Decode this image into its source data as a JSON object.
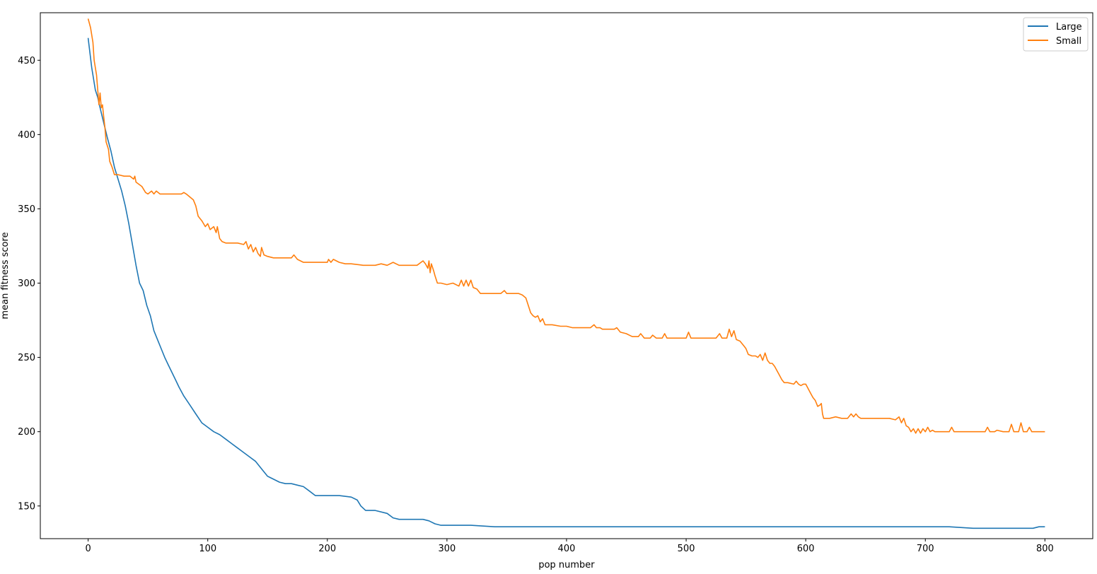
{
  "chart_data": {
    "type": "line",
    "title": "",
    "xlabel": "pop number",
    "ylabel": "mean fitness score",
    "xlim": [
      -40,
      840
    ],
    "ylim": [
      128,
      482
    ],
    "xticks": [
      0,
      100,
      200,
      300,
      400,
      500,
      600,
      700,
      800
    ],
    "yticks": [
      150,
      200,
      250,
      300,
      350,
      400,
      450
    ],
    "grid": false,
    "legend_position": "top-right",
    "series": [
      {
        "name": "Large",
        "color": "#1f77b4",
        "points": [
          [
            0,
            465
          ],
          [
            3,
            445
          ],
          [
            6,
            430
          ],
          [
            8,
            425
          ],
          [
            10,
            418
          ],
          [
            13,
            408
          ],
          [
            16,
            398
          ],
          [
            19,
            389
          ],
          [
            22,
            378
          ],
          [
            25,
            370
          ],
          [
            28,
            362
          ],
          [
            31,
            352
          ],
          [
            34,
            340
          ],
          [
            37,
            326
          ],
          [
            40,
            312
          ],
          [
            43,
            300
          ],
          [
            46,
            295
          ],
          [
            49,
            285
          ],
          [
            52,
            278
          ],
          [
            55,
            268
          ],
          [
            58,
            262
          ],
          [
            61,
            256
          ],
          [
            64,
            250
          ],
          [
            67,
            245
          ],
          [
            70,
            240
          ],
          [
            73,
            235
          ],
          [
            76,
            230
          ],
          [
            80,
            224
          ],
          [
            85,
            218
          ],
          [
            90,
            212
          ],
          [
            95,
            206
          ],
          [
            100,
            203
          ],
          [
            105,
            200
          ],
          [
            110,
            198
          ],
          [
            115,
            195
          ],
          [
            120,
            192
          ],
          [
            125,
            189
          ],
          [
            130,
            186
          ],
          [
            135,
            183
          ],
          [
            140,
            180
          ],
          [
            145,
            175
          ],
          [
            150,
            170
          ],
          [
            155,
            168
          ],
          [
            160,
            166
          ],
          [
            165,
            165
          ],
          [
            170,
            165
          ],
          [
            175,
            164
          ],
          [
            180,
            163
          ],
          [
            185,
            160
          ],
          [
            190,
            157
          ],
          [
            195,
            157
          ],
          [
            200,
            157
          ],
          [
            210,
            157
          ],
          [
            220,
            156
          ],
          [
            225,
            154
          ],
          [
            228,
            150
          ],
          [
            232,
            147
          ],
          [
            240,
            147
          ],
          [
            250,
            145
          ],
          [
            255,
            142
          ],
          [
            260,
            141
          ],
          [
            270,
            141
          ],
          [
            280,
            141
          ],
          [
            285,
            140
          ],
          [
            290,
            138
          ],
          [
            295,
            137
          ],
          [
            300,
            137
          ],
          [
            320,
            137
          ],
          [
            340,
            136
          ],
          [
            360,
            136
          ],
          [
            380,
            136
          ],
          [
            400,
            136
          ],
          [
            420,
            136
          ],
          [
            450,
            136
          ],
          [
            480,
            136
          ],
          [
            500,
            136
          ],
          [
            520,
            136
          ],
          [
            550,
            136
          ],
          [
            580,
            136
          ],
          [
            600,
            136
          ],
          [
            620,
            136
          ],
          [
            650,
            136
          ],
          [
            680,
            136
          ],
          [
            700,
            136
          ],
          [
            720,
            136
          ],
          [
            740,
            135
          ],
          [
            760,
            135
          ],
          [
            780,
            135
          ],
          [
            790,
            135
          ],
          [
            795,
            136
          ],
          [
            800,
            136
          ]
        ]
      },
      {
        "name": "Small",
        "color": "#ff7f0e",
        "points": [
          [
            0,
            478
          ],
          [
            2,
            472
          ],
          [
            4,
            462
          ],
          [
            5,
            450
          ],
          [
            7,
            440
          ],
          [
            8,
            430
          ],
          [
            9,
            420
          ],
          [
            10,
            428
          ],
          [
            11,
            418
          ],
          [
            12,
            420
          ],
          [
            13,
            412
          ],
          [
            14,
            405
          ],
          [
            15,
            395
          ],
          [
            17,
            390
          ],
          [
            18,
            382
          ],
          [
            20,
            378
          ],
          [
            22,
            373
          ],
          [
            25,
            373
          ],
          [
            30,
            372
          ],
          [
            35,
            372
          ],
          [
            38,
            370
          ],
          [
            39,
            372
          ],
          [
            40,
            368
          ],
          [
            45,
            365
          ],
          [
            48,
            361
          ],
          [
            50,
            360
          ],
          [
            53,
            362
          ],
          [
            55,
            360
          ],
          [
            57,
            362
          ],
          [
            60,
            360
          ],
          [
            70,
            360
          ],
          [
            78,
            360
          ],
          [
            80,
            361
          ],
          [
            82,
            360
          ],
          [
            85,
            358
          ],
          [
            88,
            356
          ],
          [
            90,
            352
          ],
          [
            92,
            345
          ],
          [
            95,
            342
          ],
          [
            98,
            338
          ],
          [
            100,
            340
          ],
          [
            102,
            336
          ],
          [
            105,
            338
          ],
          [
            107,
            334
          ],
          [
            108,
            338
          ],
          [
            110,
            330
          ],
          [
            112,
            328
          ],
          [
            115,
            327
          ],
          [
            125,
            327
          ],
          [
            130,
            326
          ],
          [
            132,
            328
          ],
          [
            134,
            323
          ],
          [
            136,
            326
          ],
          [
            138,
            321
          ],
          [
            140,
            324
          ],
          [
            142,
            320
          ],
          [
            144,
            318
          ],
          [
            145,
            324
          ],
          [
            147,
            319
          ],
          [
            150,
            318
          ],
          [
            155,
            317
          ],
          [
            160,
            317
          ],
          [
            170,
            317
          ],
          [
            172,
            319
          ],
          [
            175,
            316
          ],
          [
            180,
            314
          ],
          [
            190,
            314
          ],
          [
            200,
            314
          ],
          [
            201,
            316
          ],
          [
            203,
            314
          ],
          [
            205,
            316
          ],
          [
            210,
            314
          ],
          [
            215,
            313
          ],
          [
            220,
            313
          ],
          [
            230,
            312
          ],
          [
            240,
            312
          ],
          [
            245,
            313
          ],
          [
            250,
            312
          ],
          [
            255,
            314
          ],
          [
            260,
            312
          ],
          [
            270,
            312
          ],
          [
            275,
            312
          ],
          [
            280,
            315
          ],
          [
            282,
            313
          ],
          [
            284,
            310
          ],
          [
            285,
            315
          ],
          [
            286,
            307
          ],
          [
            287,
            313
          ],
          [
            289,
            308
          ],
          [
            290,
            305
          ],
          [
            292,
            300
          ],
          [
            295,
            300
          ],
          [
            300,
            299
          ],
          [
            305,
            300
          ],
          [
            310,
            298
          ],
          [
            312,
            302
          ],
          [
            314,
            298
          ],
          [
            316,
            302
          ],
          [
            318,
            298
          ],
          [
            320,
            302
          ],
          [
            322,
            297
          ],
          [
            325,
            296
          ],
          [
            328,
            293
          ],
          [
            335,
            293
          ],
          [
            345,
            293
          ],
          [
            348,
            295
          ],
          [
            350,
            293
          ],
          [
            360,
            293
          ],
          [
            363,
            292
          ],
          [
            366,
            290
          ],
          [
            368,
            285
          ],
          [
            370,
            280
          ],
          [
            372,
            278
          ],
          [
            374,
            277
          ],
          [
            376,
            278
          ],
          [
            378,
            274
          ],
          [
            380,
            276
          ],
          [
            382,
            272
          ],
          [
            388,
            272
          ],
          [
            395,
            271
          ],
          [
            400,
            271
          ],
          [
            405,
            270
          ],
          [
            410,
            270
          ],
          [
            415,
            270
          ],
          [
            420,
            270
          ],
          [
            423,
            272
          ],
          [
            425,
            270
          ],
          [
            428,
            270
          ],
          [
            430,
            269
          ],
          [
            440,
            269
          ],
          [
            442,
            270
          ],
          [
            445,
            267
          ],
          [
            450,
            266
          ],
          [
            455,
            264
          ],
          [
            460,
            264
          ],
          [
            462,
            266
          ],
          [
            465,
            263
          ],
          [
            470,
            263
          ],
          [
            472,
            265
          ],
          [
            475,
            263
          ],
          [
            480,
            263
          ],
          [
            482,
            266
          ],
          [
            484,
            263
          ],
          [
            490,
            263
          ],
          [
            500,
            263
          ],
          [
            502,
            267
          ],
          [
            504,
            263
          ],
          [
            510,
            263
          ],
          [
            520,
            263
          ],
          [
            525,
            263
          ],
          [
            528,
            266
          ],
          [
            530,
            263
          ],
          [
            534,
            263
          ],
          [
            536,
            269
          ],
          [
            538,
            264
          ],
          [
            540,
            268
          ],
          [
            542,
            262
          ],
          [
            545,
            261
          ],
          [
            548,
            258
          ],
          [
            550,
            256
          ],
          [
            552,
            252
          ],
          [
            555,
            251
          ],
          [
            558,
            251
          ],
          [
            560,
            250
          ],
          [
            562,
            252
          ],
          [
            564,
            248
          ],
          [
            566,
            253
          ],
          [
            568,
            248
          ],
          [
            570,
            246
          ],
          [
            572,
            246
          ],
          [
            574,
            244
          ],
          [
            576,
            241
          ],
          [
            578,
            238
          ],
          [
            580,
            235
          ],
          [
            582,
            233
          ],
          [
            585,
            233
          ],
          [
            590,
            232
          ],
          [
            592,
            234
          ],
          [
            594,
            232
          ],
          [
            596,
            231
          ],
          [
            598,
            232
          ],
          [
            600,
            232
          ],
          [
            602,
            229
          ],
          [
            604,
            226
          ],
          [
            606,
            223
          ],
          [
            608,
            221
          ],
          [
            610,
            217
          ],
          [
            612,
            218
          ],
          [
            613,
            219
          ],
          [
            614,
            212
          ],
          [
            615,
            209
          ],
          [
            620,
            209
          ],
          [
            625,
            210
          ],
          [
            630,
            209
          ],
          [
            635,
            209
          ],
          [
            638,
            212
          ],
          [
            640,
            210
          ],
          [
            642,
            212
          ],
          [
            644,
            210
          ],
          [
            646,
            209
          ],
          [
            660,
            209
          ],
          [
            670,
            209
          ],
          [
            675,
            208
          ],
          [
            678,
            210
          ],
          [
            680,
            206
          ],
          [
            682,
            209
          ],
          [
            684,
            204
          ],
          [
            686,
            203
          ],
          [
            688,
            200
          ],
          [
            690,
            202
          ],
          [
            692,
            199
          ],
          [
            694,
            202
          ],
          [
            696,
            199
          ],
          [
            698,
            202
          ],
          [
            700,
            200
          ],
          [
            702,
            203
          ],
          [
            704,
            200
          ],
          [
            706,
            201
          ],
          [
            708,
            200
          ],
          [
            720,
            200
          ],
          [
            722,
            203
          ],
          [
            724,
            200
          ],
          [
            740,
            200
          ],
          [
            750,
            200
          ],
          [
            752,
            203
          ],
          [
            754,
            200
          ],
          [
            758,
            200
          ],
          [
            760,
            201
          ],
          [
            765,
            200
          ],
          [
            770,
            200
          ],
          [
            772,
            205
          ],
          [
            774,
            200
          ],
          [
            778,
            200
          ],
          [
            780,
            206
          ],
          [
            782,
            200
          ],
          [
            785,
            200
          ],
          [
            787,
            203
          ],
          [
            789,
            200
          ],
          [
            800,
            200
          ]
        ]
      }
    ]
  }
}
